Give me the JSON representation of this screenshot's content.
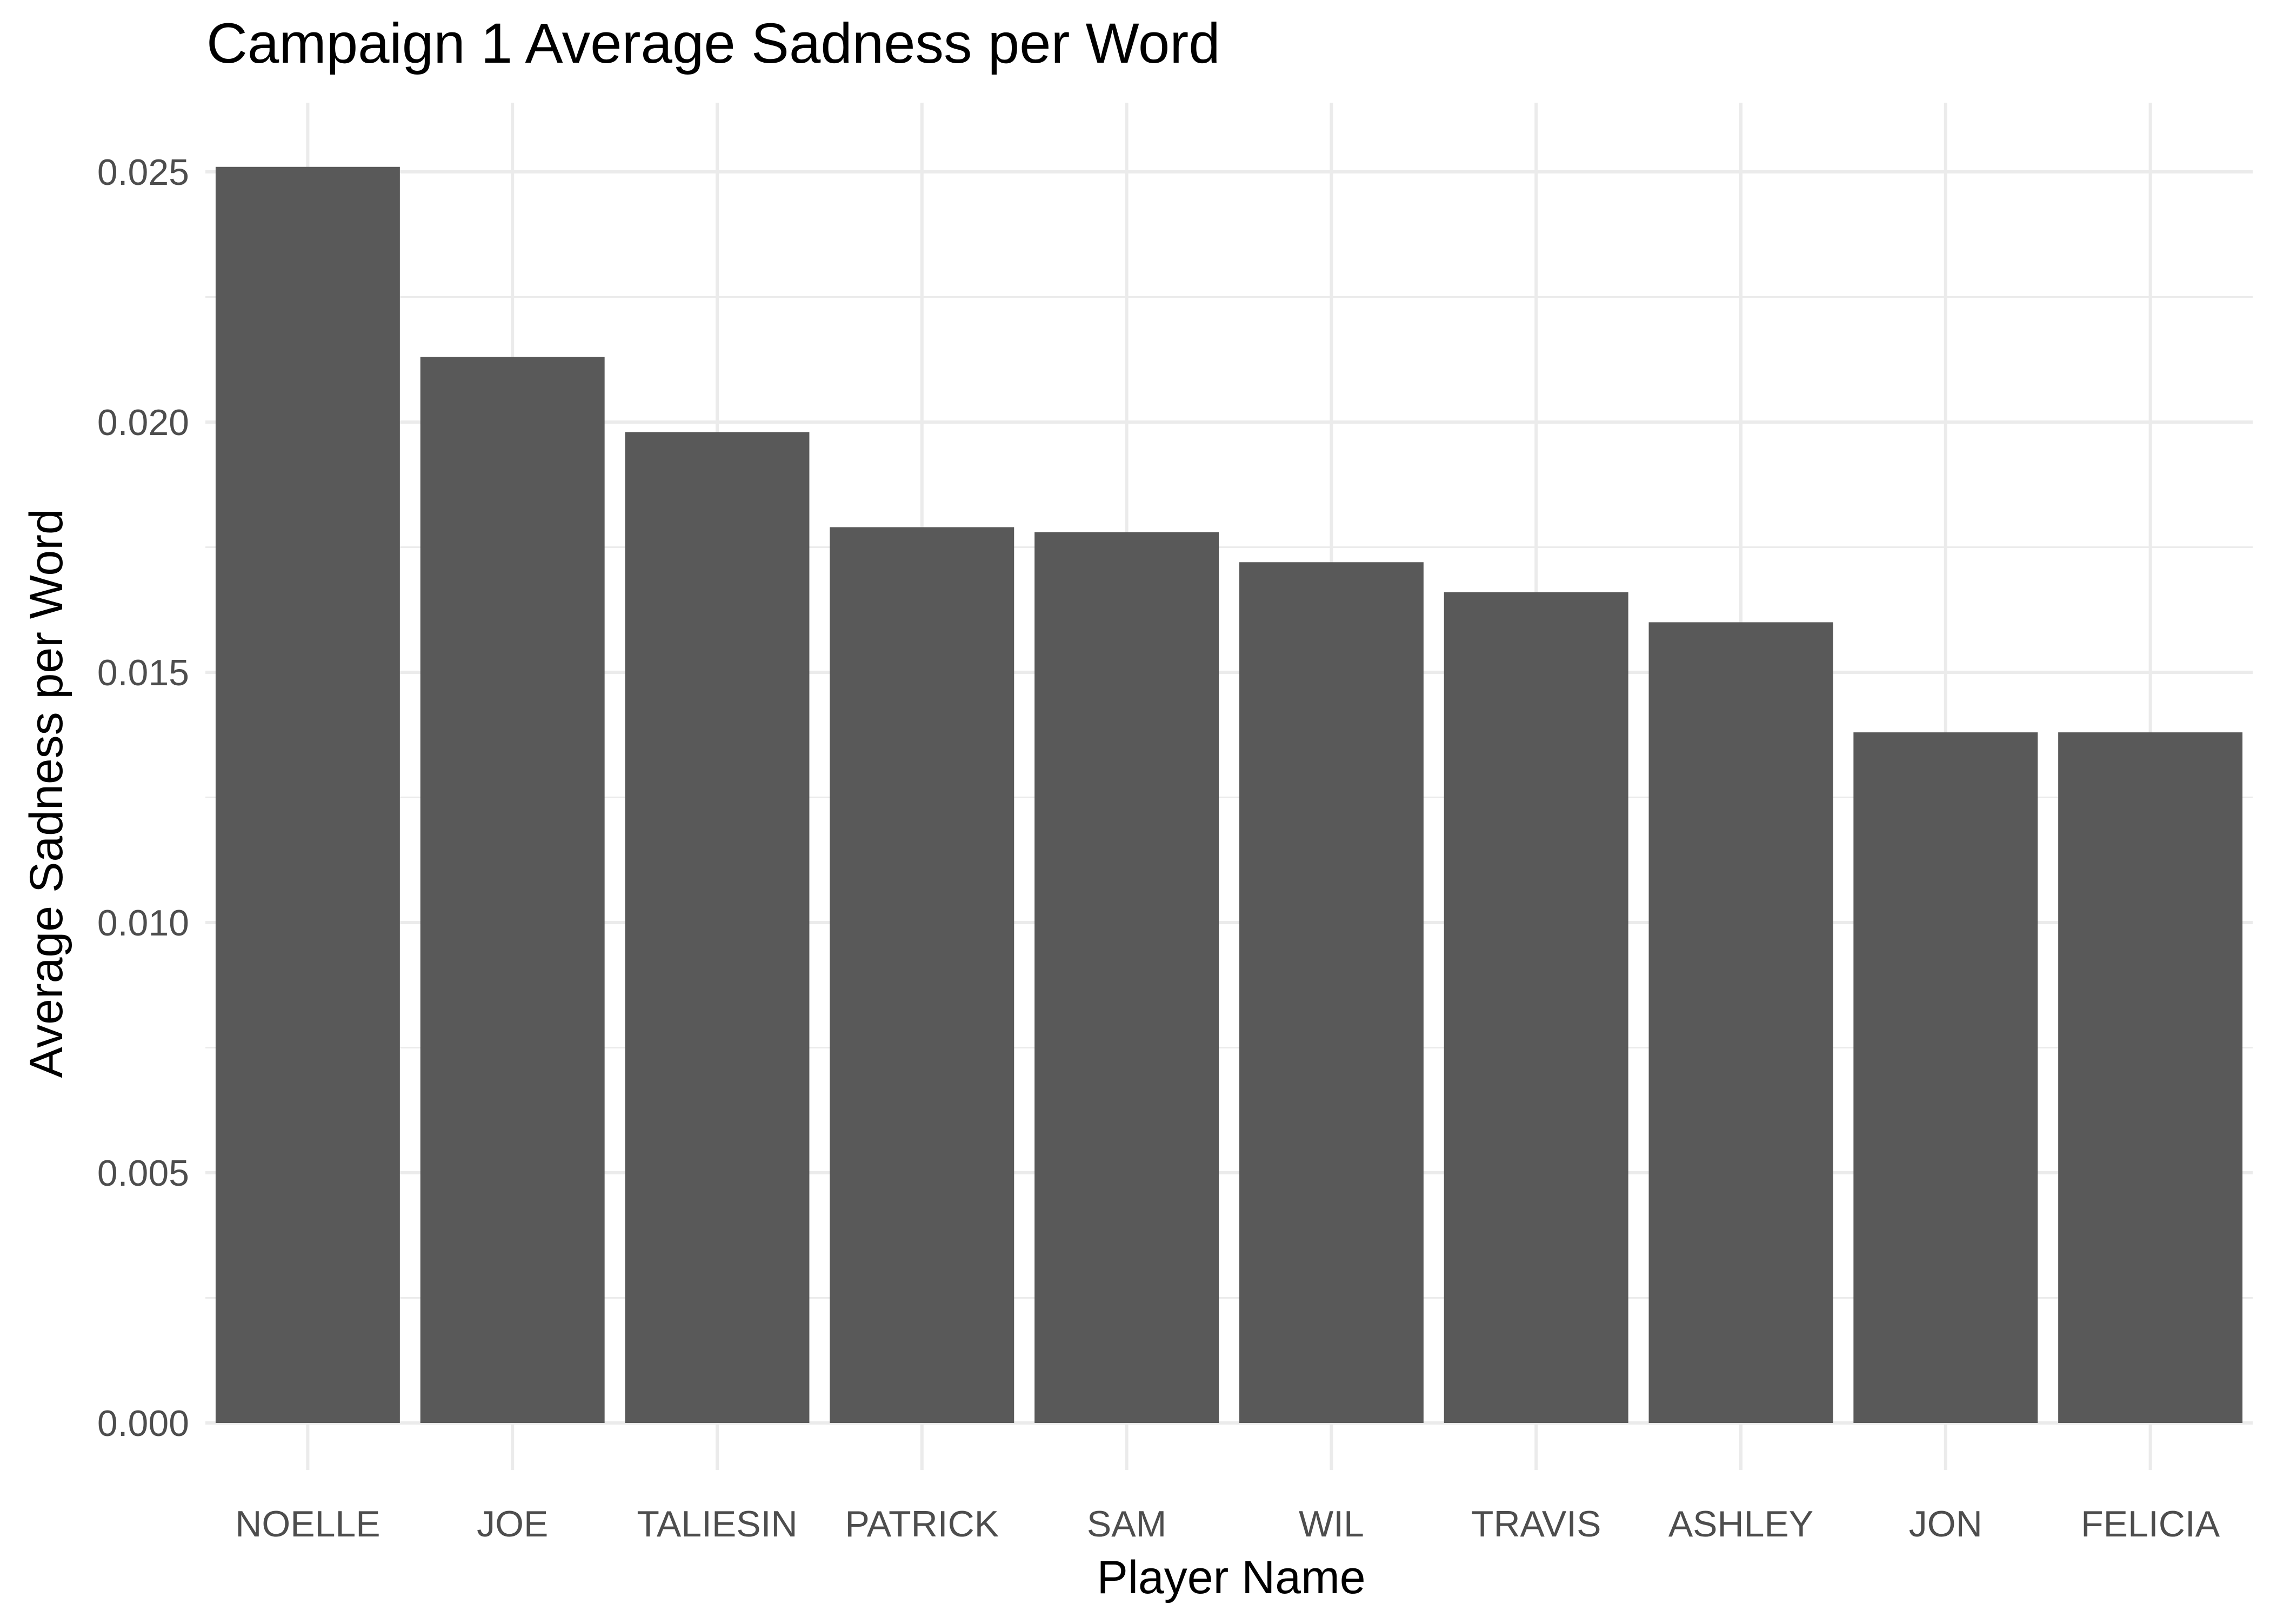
{
  "chart_data": {
    "type": "bar",
    "title": "Campaign 1 Average Sadness per Word",
    "xlabel": "Player Name",
    "ylabel": "Average Sadness per Word",
    "categories": [
      "NOELLE",
      "JOE",
      "TALIESIN",
      "PATRICK",
      "SAM",
      "WIL",
      "TRAVIS",
      "ASHLEY",
      "JON",
      "FELICIA"
    ],
    "values": [
      0.0251,
      0.0213,
      0.0198,
      0.0179,
      0.0178,
      0.0172,
      0.0166,
      0.016,
      0.0138,
      0.0138
    ],
    "ylim": [
      0,
      0.0265
    ],
    "yticks": [
      0.0,
      0.005,
      0.01,
      0.015,
      0.02,
      0.025
    ],
    "ytick_labels": [
      "0.000",
      "0.005",
      "0.010",
      "0.015",
      "0.020",
      "0.025"
    ],
    "grid": true,
    "bar_color": "#595959",
    "grid_color": "#ebebeb",
    "text_color": "#000000",
    "tick_label_color": "#4d4d4d",
    "background": "#ffffff"
  }
}
